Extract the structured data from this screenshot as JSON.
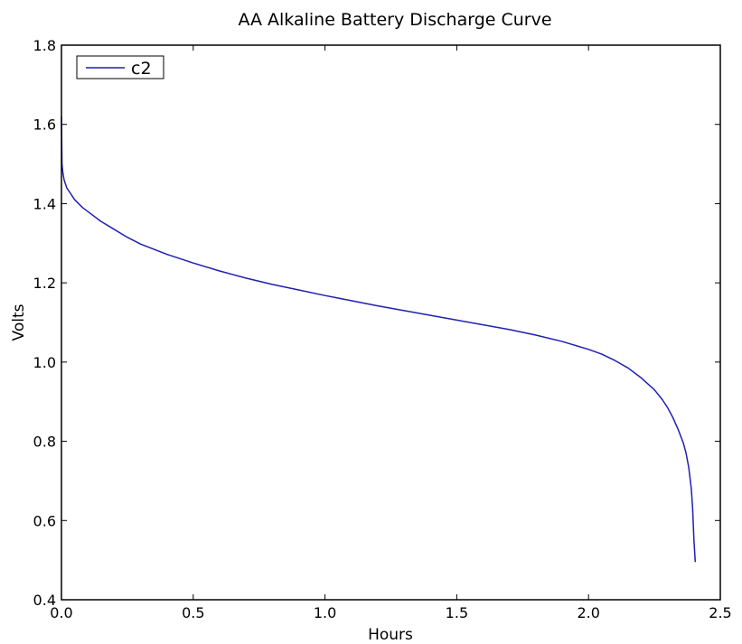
{
  "chart_data": {
    "type": "line",
    "title": "AA Alkaline Battery Discharge Curve",
    "xlabel": "Hours",
    "ylabel": "Volts",
    "xlim": [
      0.0,
      2.5
    ],
    "ylim": [
      0.4,
      1.8
    ],
    "xticks": [
      "0.0",
      "0.5",
      "1.0",
      "1.5",
      "2.0",
      "2.5"
    ],
    "yticks": [
      "0.4",
      "0.6",
      "0.8",
      "1.0",
      "1.2",
      "1.4",
      "1.6",
      "1.8"
    ],
    "grid": false,
    "legend": {
      "placement": "top-left",
      "entries": [
        "c2"
      ]
    },
    "series": [
      {
        "name": "c2",
        "color": "#1f1fb4",
        "x": [
          0.0,
          0.002,
          0.005,
          0.01,
          0.02,
          0.03,
          0.05,
          0.08,
          0.1,
          0.15,
          0.2,
          0.25,
          0.3,
          0.4,
          0.5,
          0.6,
          0.7,
          0.8,
          0.9,
          1.0,
          1.1,
          1.2,
          1.3,
          1.4,
          1.5,
          1.6,
          1.7,
          1.8,
          1.9,
          2.0,
          2.05,
          2.1,
          2.15,
          2.2,
          2.25,
          2.28,
          2.3,
          2.32,
          2.34,
          2.36,
          2.37,
          2.38,
          2.39,
          2.395,
          2.4,
          2.405
        ],
        "y": [
          1.62,
          1.5,
          1.48,
          1.46,
          1.44,
          1.43,
          1.41,
          1.39,
          1.38,
          1.355,
          1.335,
          1.315,
          1.298,
          1.272,
          1.25,
          1.23,
          1.212,
          1.196,
          1.182,
          1.168,
          1.155,
          1.142,
          1.13,
          1.118,
          1.106,
          1.094,
          1.082,
          1.068,
          1.052,
          1.032,
          1.02,
          1.004,
          0.985,
          0.96,
          0.93,
          0.905,
          0.885,
          0.86,
          0.83,
          0.795,
          0.77,
          0.735,
          0.68,
          0.63,
          0.55,
          0.495
        ]
      }
    ]
  }
}
